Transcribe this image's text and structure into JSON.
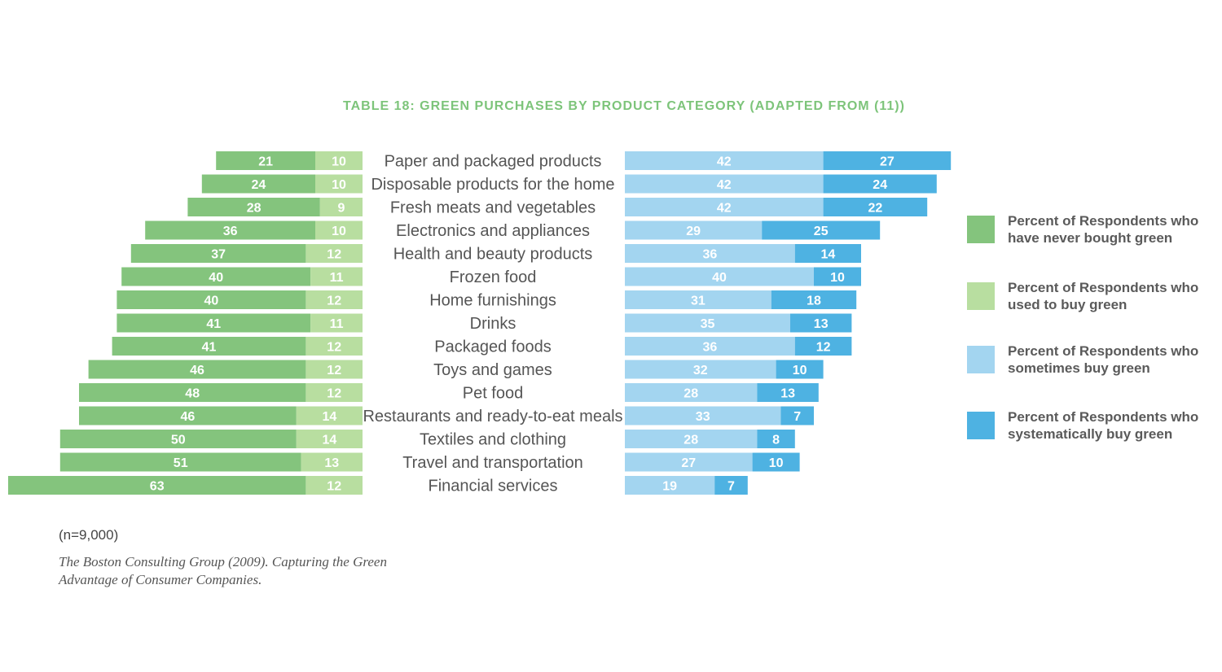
{
  "chart_data": {
    "type": "bar",
    "subtype": "diverging-stacked-horizontal",
    "title": "TABLE 18: GREEN PURCHASES BY PRODUCT CATEGORY (ADAPTED FROM (11))",
    "categories": [
      "Paper and packaged products",
      "Disposable products for the home",
      "Fresh meats and vegetables",
      "Electronics and appliances",
      "Health and beauty products",
      "Frozen food",
      "Home furnishings",
      "Drinks",
      "Packaged foods",
      "Toys and games",
      "Pet food",
      "Restaurants and ready-to-eat meals",
      "Textiles and clothing",
      "Travel and transportation",
      "Financial services"
    ],
    "series": [
      {
        "name": "Percent of Respondents who have never bought green",
        "side": "left",
        "color": "#84c47d",
        "values": [
          21,
          24,
          28,
          36,
          37,
          40,
          40,
          41,
          41,
          46,
          48,
          46,
          50,
          51,
          63
        ]
      },
      {
        "name": "Percent of Respondents who used to buy green",
        "side": "left",
        "color": "#b8dea0",
        "values": [
          10,
          10,
          9,
          10,
          12,
          11,
          12,
          11,
          12,
          12,
          12,
          14,
          14,
          13,
          12
        ]
      },
      {
        "name": "Percent of Respondents who sometimes buy green",
        "side": "right",
        "color": "#a3d5f0",
        "values": [
          42,
          42,
          42,
          29,
          36,
          40,
          31,
          35,
          36,
          32,
          28,
          33,
          28,
          27,
          19
        ]
      },
      {
        "name": "Percent of Respondents who systematically buy green",
        "side": "right",
        "color": "#4eb2e2",
        "values": [
          27,
          24,
          22,
          25,
          14,
          10,
          18,
          13,
          12,
          10,
          13,
          7,
          8,
          10,
          7
        ]
      }
    ],
    "legend": {
      "position": "right",
      "items": [
        {
          "line1": "Percent of Respondents who",
          "line2": "have never bought green"
        },
        {
          "line1": "Percent of Respondents who",
          "line2": "used to buy green"
        },
        {
          "line1": "Percent of Respondents who",
          "line2": "sometimes buy green"
        },
        {
          "line1": "Percent of Respondents who",
          "line2": "systematically buy green"
        }
      ]
    },
    "title_color": "#7dc47a",
    "grid": false
  },
  "note": "(n=9,000)",
  "source_line1": "The Boston Consulting Group (2009). Capturing the Green",
  "source_line2": "Advantage of Consumer Companies."
}
